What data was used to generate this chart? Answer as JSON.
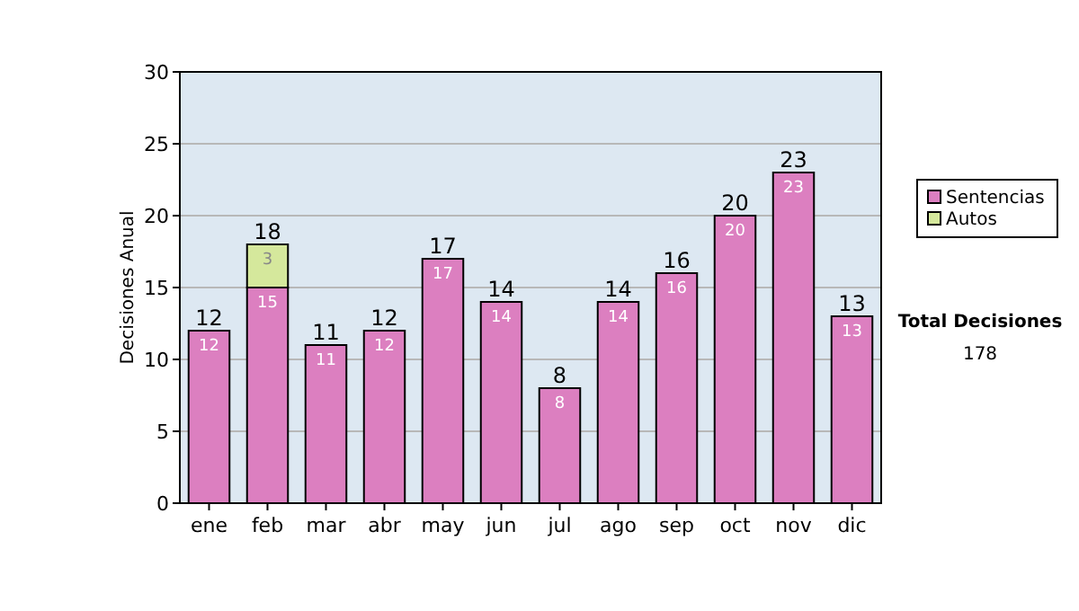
{
  "chart_data": {
    "type": "bar",
    "stacked": true,
    "ylabel": "Decisiones Anual",
    "categories": [
      "ene",
      "feb",
      "mar",
      "abr",
      "may",
      "jun",
      "jul",
      "ago",
      "sep",
      "oct",
      "nov",
      "dic"
    ],
    "series": [
      {
        "name": "Sentencias",
        "color": "#dc7fc0",
        "values": [
          12,
          15,
          11,
          12,
          17,
          14,
          8,
          14,
          16,
          20,
          23,
          13
        ]
      },
      {
        "name": "Autos",
        "color": "#d5e89c",
        "values": [
          null,
          3,
          null,
          null,
          null,
          null,
          null,
          null,
          null,
          null,
          null,
          null
        ]
      }
    ],
    "data_labels": true,
    "totals": [
      "12",
      "18",
      "11",
      "12",
      "17",
      "14",
      "8",
      "14",
      "16",
      "20",
      "23",
      "13"
    ],
    "ylim": [
      0,
      30
    ],
    "yticks": [
      0,
      5,
      10,
      15,
      20,
      25,
      30
    ],
    "grid": "y",
    "legend": "right",
    "annotations": [
      "Total Decisiones",
      "178"
    ]
  }
}
